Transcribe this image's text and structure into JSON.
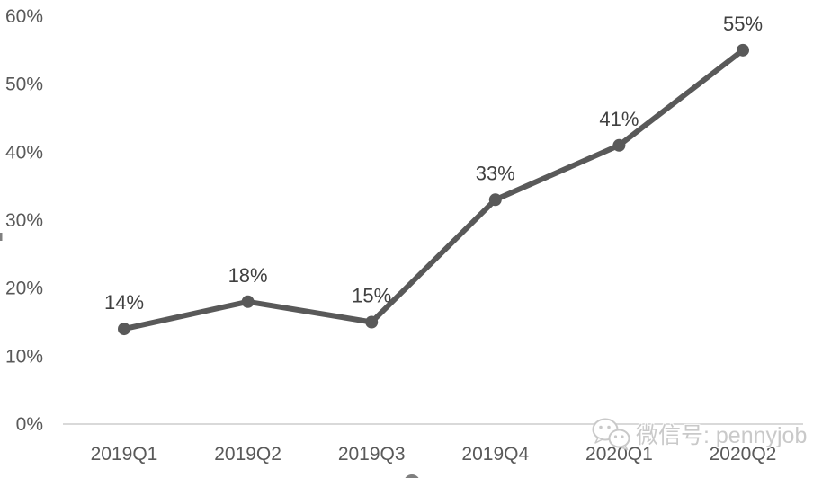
{
  "chart_data": {
    "type": "line",
    "categories": [
      "2019Q1",
      "2019Q2",
      "2019Q3",
      "2019Q4",
      "2020Q1",
      "2020Q2"
    ],
    "values": [
      14,
      18,
      15,
      33,
      41,
      55
    ],
    "data_labels": [
      "14%",
      "18%",
      "15%",
      "33%",
      "41%",
      "55%"
    ],
    "y_ticks": [
      "0%",
      "10%",
      "20%",
      "30%",
      "40%",
      "50%",
      "60%"
    ],
    "ylim": [
      0,
      60
    ],
    "title": "",
    "xlabel": "",
    "ylabel": "",
    "grid": false,
    "legend_position": "bottom-partial",
    "series_color": "#595959",
    "axis_line_color": "#d9d9d9",
    "tick_label_color": "#595959",
    "data_label_color": "#404040"
  },
  "watermark": {
    "text": "微信号: pennyjob",
    "icon": "wechat-icon",
    "color": "#c9c9c9"
  }
}
